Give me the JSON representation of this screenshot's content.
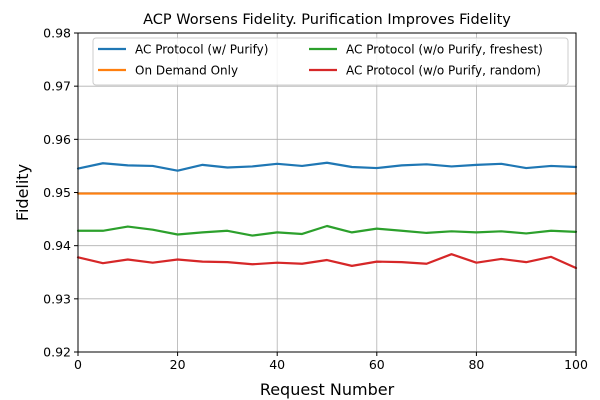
{
  "chart_data": {
    "type": "line",
    "title": "ACP Worsens Fidelity. Purification Improves Fidelity",
    "xlabel": "Request Number",
    "ylabel": "Fidelity",
    "xlim": [
      0,
      100
    ],
    "ylim": [
      0.92,
      0.98
    ],
    "xticks": [
      0,
      20,
      40,
      60,
      80,
      100
    ],
    "yticks": [
      0.92,
      0.93,
      0.94,
      0.95,
      0.96,
      0.97,
      0.98
    ],
    "xtick_labels": [
      "0",
      "20",
      "40",
      "60",
      "80",
      "100"
    ],
    "ytick_labels": [
      "0.92",
      "0.93",
      "0.94",
      "0.95",
      "0.96",
      "0.97",
      "0.98"
    ],
    "grid": true,
    "legend_position": "top-right",
    "legend_columns": 2,
    "x": [
      0,
      5,
      10,
      15,
      20,
      25,
      30,
      35,
      40,
      45,
      50,
      55,
      60,
      65,
      70,
      75,
      80,
      85,
      90,
      95,
      100
    ],
    "series": [
      {
        "name": "AC Protocol (w/ Purify)",
        "color": "#1f77b4",
        "values": [
          0.9545,
          0.9555,
          0.9551,
          0.955,
          0.9541,
          0.9552,
          0.9547,
          0.9549,
          0.9554,
          0.955,
          0.9556,
          0.9548,
          0.9546,
          0.9551,
          0.9553,
          0.9549,
          0.9552,
          0.9554,
          0.9546,
          0.955,
          0.9548
        ]
      },
      {
        "name": "On Demand Only",
        "color": "#ff7f0e",
        "values": [
          0.9498,
          0.9498,
          0.9498,
          0.9498,
          0.9498,
          0.9498,
          0.9498,
          0.9498,
          0.9498,
          0.9498,
          0.9498,
          0.9498,
          0.9498,
          0.9498,
          0.9498,
          0.9498,
          0.9498,
          0.9498,
          0.9498,
          0.9498,
          0.9498
        ]
      },
      {
        "name": "AC Protocol (w/o Purify, freshest)",
        "color": "#2ca02c",
        "values": [
          0.9428,
          0.9428,
          0.9436,
          0.943,
          0.9421,
          0.9425,
          0.9428,
          0.9419,
          0.9425,
          0.9422,
          0.9437,
          0.9425,
          0.9432,
          0.9428,
          0.9424,
          0.9427,
          0.9425,
          0.9427,
          0.9423,
          0.9428,
          0.9426
        ]
      },
      {
        "name": "AC Protocol (w/o Purify, random)",
        "color": "#d62728",
        "values": [
          0.9378,
          0.9367,
          0.9374,
          0.9368,
          0.9374,
          0.937,
          0.9369,
          0.9365,
          0.9368,
          0.9366,
          0.9373,
          0.9362,
          0.937,
          0.9369,
          0.9366,
          0.9384,
          0.9368,
          0.9375,
          0.9369,
          0.9379,
          0.9358
        ]
      }
    ]
  }
}
